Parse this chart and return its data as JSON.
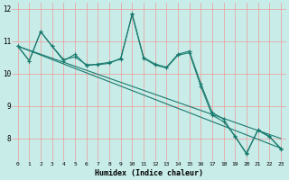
{
  "xlabel": "Humidex (Indice chaleur)",
  "bg_color": "#c8ece8",
  "grid_color": "#ee9999",
  "line_color": "#1a7a6e",
  "xlim": [
    -0.5,
    23.5
  ],
  "ylim": [
    7.3,
    12.2
  ],
  "yticks": [
    8,
    9,
    10,
    11,
    12
  ],
  "xticks": [
    0,
    1,
    2,
    3,
    4,
    5,
    6,
    7,
    8,
    9,
    10,
    11,
    12,
    13,
    14,
    15,
    16,
    17,
    18,
    19,
    20,
    21,
    22,
    23
  ],
  "line1": [
    10.85,
    10.4,
    11.3,
    10.85,
    10.4,
    10.6,
    10.25,
    10.3,
    10.35,
    10.45,
    11.85,
    10.5,
    10.3,
    10.2,
    10.6,
    10.7,
    9.7,
    8.8,
    8.6,
    8.05,
    7.55,
    8.25,
    8.05,
    7.7
  ],
  "line2": [
    10.85,
    10.4,
    11.3,
    10.85,
    10.44,
    10.52,
    10.28,
    10.28,
    10.32,
    10.48,
    11.82,
    10.48,
    10.27,
    10.18,
    10.57,
    10.65,
    9.62,
    8.72,
    8.52,
    8.08,
    7.52,
    8.27,
    8.07,
    7.67
  ],
  "line3_x": [
    0,
    23
  ],
  "line3_y": [
    10.85,
    7.7
  ],
  "line4_x": [
    0,
    23
  ],
  "line4_y": [
    10.85,
    8.0
  ]
}
